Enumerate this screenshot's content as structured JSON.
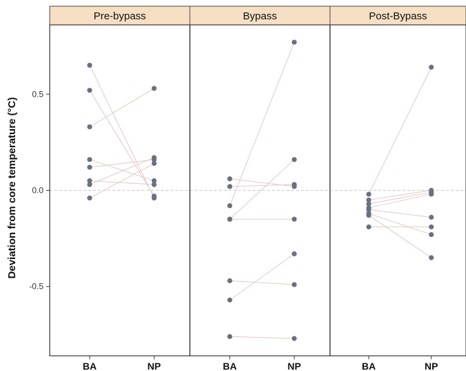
{
  "chart_data": {
    "type": "scatter",
    "title": "",
    "xlabel": "",
    "ylabel": "Deviation from core temperature (°C)",
    "ylim": [
      -0.86,
      0.86
    ],
    "yticks": [
      0.5,
      0.0,
      -0.5
    ],
    "ytick_labels": [
      "0.5",
      "0.0",
      "-0.5"
    ],
    "reference_line": 0,
    "grid": false,
    "categories": [
      "BA",
      "NP"
    ],
    "colors": {
      "point": "#6b7080",
      "line": "#e2c8c8",
      "strip_fill": "#f7dfc3",
      "frame": "#444444",
      "reference": "#cfcfcf"
    },
    "panels": [
      {
        "name": "Pre-bypass",
        "pairs": [
          {
            "BA": 0.65,
            "NP": -0.04
          },
          {
            "BA": 0.52,
            "NP": -0.03
          },
          {
            "BA": 0.33,
            "NP": 0.53
          },
          {
            "BA": 0.16,
            "NP": 0.05
          },
          {
            "BA": 0.12,
            "NP": 0.16
          },
          {
            "BA": 0.05,
            "NP": 0.03
          },
          {
            "BA": 0.03,
            "NP": 0.17
          },
          {
            "BA": -0.04,
            "NP": 0.14
          }
        ]
      },
      {
        "name": "Bypass",
        "pairs": [
          {
            "BA": 0.06,
            "NP": 0.02
          },
          {
            "BA": 0.02,
            "NP": 0.03
          },
          {
            "BA": -0.08,
            "NP": 0.77
          },
          {
            "BA": -0.15,
            "NP": 0.16
          },
          {
            "BA": -0.15,
            "NP": -0.15
          },
          {
            "BA": -0.47,
            "NP": -0.49
          },
          {
            "BA": -0.57,
            "NP": -0.33
          },
          {
            "BA": -0.76,
            "NP": -0.77
          }
        ]
      },
      {
        "name": "Post-Bypass",
        "pairs": [
          {
            "BA": -0.02,
            "NP": 0.64
          },
          {
            "BA": -0.05,
            "NP": 0.0
          },
          {
            "BA": -0.07,
            "NP": -0.01
          },
          {
            "BA": -0.09,
            "NP": -0.02
          },
          {
            "BA": -0.1,
            "NP": -0.14
          },
          {
            "BA": -0.12,
            "NP": -0.23
          },
          {
            "BA": -0.13,
            "NP": -0.35
          },
          {
            "BA": -0.19,
            "NP": -0.19
          }
        ]
      }
    ]
  }
}
